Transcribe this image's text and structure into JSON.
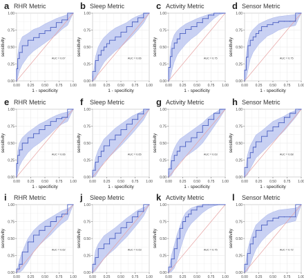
{
  "figure": {
    "xlabel": "1 - specificity",
    "ylabel": "sensitivity",
    "xticks": [
      "0.00",
      "0.25",
      "0.50",
      "0.75",
      "1.00"
    ],
    "yticks": [
      "0.00",
      "0.25",
      "0.50",
      "0.75",
      "1.00"
    ]
  },
  "colors": {
    "roc_line": "#4a5fc1",
    "ci_band": "#b7c2ef",
    "diagonal": "#e7a3a3",
    "grid": "#e6e6e6",
    "panel_border": "#9a9a9a"
  },
  "chart_data": [
    {
      "type": "line",
      "panel_letter": "a",
      "title": "RHR Metric",
      "auc_label": "AUC = 0.67",
      "xlim": [
        0,
        1
      ],
      "ylim": [
        0,
        1
      ],
      "grid": true,
      "series": [
        {
          "x": [
            0,
            0.02,
            0.05,
            0.1,
            0.2,
            0.3,
            0.4,
            0.5,
            0.6,
            0.7,
            0.8,
            0.9,
            1.0
          ],
          "y": [
            0,
            0.18,
            0.33,
            0.42,
            0.52,
            0.6,
            0.64,
            0.7,
            0.74,
            0.79,
            0.86,
            0.9,
            1.0
          ]
        }
      ],
      "ci_lower": [
        0,
        0.05,
        0.15,
        0.24,
        0.36,
        0.44,
        0.5,
        0.56,
        0.62,
        0.68,
        0.76,
        0.82,
        1.0
      ],
      "ci_upper": [
        0,
        0.38,
        0.55,
        0.65,
        0.7,
        0.76,
        0.79,
        0.84,
        0.88,
        0.92,
        0.95,
        0.98,
        1.0
      ]
    },
    {
      "type": "line",
      "panel_letter": "b",
      "title": "Sleep Metric",
      "auc_label": "AUC = 0.66",
      "xlim": [
        0,
        1
      ],
      "ylim": [
        0,
        1
      ],
      "grid": true,
      "series": [
        {
          "x": [
            0,
            0.05,
            0.1,
            0.15,
            0.2,
            0.25,
            0.3,
            0.4,
            0.5,
            0.6,
            0.7,
            0.8,
            0.9,
            1.0
          ],
          "y": [
            0,
            0.14,
            0.3,
            0.38,
            0.45,
            0.5,
            0.55,
            0.6,
            0.65,
            0.72,
            0.8,
            0.87,
            0.93,
            1.0
          ]
        }
      ],
      "ci_lower": [
        0,
        0.02,
        0.12,
        0.2,
        0.27,
        0.32,
        0.36,
        0.44,
        0.5,
        0.58,
        0.66,
        0.75,
        0.85,
        1.0
      ],
      "ci_upper": [
        0,
        0.35,
        0.5,
        0.58,
        0.64,
        0.68,
        0.72,
        0.78,
        0.82,
        0.86,
        0.92,
        0.96,
        0.99,
        1.0
      ]
    },
    {
      "type": "line",
      "panel_letter": "c",
      "title": "Activity Metric",
      "auc_label": "AUC = 0.75",
      "xlim": [
        0,
        1
      ],
      "ylim": [
        0,
        1
      ],
      "grid": true,
      "series": [
        {
          "x": [
            0,
            0.03,
            0.06,
            0.1,
            0.15,
            0.2,
            0.3,
            0.4,
            0.5,
            0.6,
            0.7,
            0.8,
            0.9,
            1.0
          ],
          "y": [
            0,
            0.2,
            0.36,
            0.48,
            0.56,
            0.62,
            0.7,
            0.76,
            0.8,
            0.86,
            0.92,
            0.97,
            1.0,
            1.0
          ]
        }
      ],
      "ci_lower": [
        0,
        0.05,
        0.16,
        0.28,
        0.38,
        0.44,
        0.54,
        0.62,
        0.68,
        0.76,
        0.84,
        0.92,
        0.98,
        1.0
      ],
      "ci_upper": [
        0,
        0.45,
        0.58,
        0.68,
        0.74,
        0.78,
        0.84,
        0.88,
        0.92,
        0.95,
        0.98,
        1.0,
        1.0,
        1.0
      ]
    },
    {
      "type": "line",
      "panel_letter": "d",
      "title": "Sensor Metric",
      "auc_label": "AUC = 0.75",
      "xlim": [
        0,
        1
      ],
      "ylim": [
        0,
        1
      ],
      "grid": true,
      "series": [
        {
          "x": [
            0,
            0.03,
            0.06,
            0.1,
            0.15,
            0.2,
            0.25,
            0.3,
            0.4,
            0.5,
            0.6,
            0.7,
            0.8,
            0.9,
            1.0
          ],
          "y": [
            0,
            0.16,
            0.35,
            0.52,
            0.6,
            0.65,
            0.7,
            0.74,
            0.8,
            0.83,
            0.86,
            0.88,
            0.88,
            0.88,
            1.0
          ]
        }
      ],
      "ci_lower": [
        0,
        0.04,
        0.16,
        0.32,
        0.42,
        0.48,
        0.54,
        0.58,
        0.66,
        0.7,
        0.75,
        0.78,
        0.8,
        0.82,
        1.0
      ],
      "ci_upper": [
        0,
        0.4,
        0.58,
        0.7,
        0.76,
        0.8,
        0.84,
        0.86,
        0.9,
        0.93,
        0.95,
        0.96,
        0.97,
        0.98,
        1.0
      ]
    },
    {
      "type": "line",
      "panel_letter": "e",
      "title": "RHR Metric",
      "auc_label": "AUC = 0.66",
      "xlim": [
        0,
        1
      ],
      "ylim": [
        0,
        1
      ],
      "grid": true,
      "series": [
        {
          "x": [
            0,
            0.02,
            0.05,
            0.1,
            0.2,
            0.3,
            0.4,
            0.5,
            0.6,
            0.7,
            0.8,
            0.9,
            1.0
          ],
          "y": [
            0,
            0.2,
            0.32,
            0.4,
            0.5,
            0.58,
            0.64,
            0.7,
            0.76,
            0.82,
            0.86,
            0.88,
            1.0
          ]
        }
      ],
      "ci_lower": [
        0,
        0.06,
        0.16,
        0.24,
        0.36,
        0.44,
        0.5,
        0.57,
        0.64,
        0.72,
        0.78,
        0.82,
        1.0
      ],
      "ci_upper": [
        0,
        0.38,
        0.5,
        0.58,
        0.66,
        0.72,
        0.78,
        0.82,
        0.87,
        0.91,
        0.94,
        0.96,
        1.0
      ]
    },
    {
      "type": "line",
      "panel_letter": "f",
      "title": "Sleep Metric",
      "auc_label": "AUC = 0.65",
      "xlim": [
        0,
        1
      ],
      "ylim": [
        0,
        1
      ],
      "grid": true,
      "series": [
        {
          "x": [
            0,
            0.05,
            0.1,
            0.15,
            0.2,
            0.3,
            0.4,
            0.5,
            0.6,
            0.7,
            0.8,
            0.9,
            1.0
          ],
          "y": [
            0,
            0.1,
            0.22,
            0.3,
            0.38,
            0.46,
            0.55,
            0.62,
            0.7,
            0.78,
            0.85,
            0.93,
            1.0
          ]
        }
      ],
      "ci_lower": [
        0,
        0.01,
        0.08,
        0.15,
        0.22,
        0.3,
        0.38,
        0.46,
        0.55,
        0.64,
        0.74,
        0.84,
        1.0
      ],
      "ci_upper": [
        0,
        0.28,
        0.4,
        0.48,
        0.56,
        0.64,
        0.72,
        0.78,
        0.84,
        0.9,
        0.94,
        0.98,
        1.0
      ]
    },
    {
      "type": "line",
      "panel_letter": "g",
      "title": "Activity Metric",
      "auc_label": "AUC = 0.63",
      "xlim": [
        0,
        1
      ],
      "ylim": [
        0,
        1
      ],
      "grid": true,
      "series": [
        {
          "x": [
            0,
            0.05,
            0.1,
            0.15,
            0.2,
            0.3,
            0.4,
            0.5,
            0.6,
            0.7,
            0.8,
            0.9,
            1.0
          ],
          "y": [
            0,
            0.12,
            0.24,
            0.32,
            0.38,
            0.45,
            0.52,
            0.58,
            0.66,
            0.76,
            0.85,
            0.94,
            1.0
          ]
        }
      ],
      "ci_lower": [
        0,
        0.02,
        0.1,
        0.16,
        0.22,
        0.3,
        0.36,
        0.42,
        0.5,
        0.62,
        0.74,
        0.86,
        1.0
      ],
      "ci_upper": [
        0,
        0.3,
        0.42,
        0.5,
        0.56,
        0.62,
        0.68,
        0.74,
        0.8,
        0.88,
        0.94,
        0.99,
        1.0
      ]
    },
    {
      "type": "line",
      "panel_letter": "h",
      "title": "Sensor Metric",
      "auc_label": "AUC = 0.68",
      "xlim": [
        0,
        1
      ],
      "ylim": [
        0,
        1
      ],
      "grid": true,
      "series": [
        {
          "x": [
            0,
            0.05,
            0.1,
            0.15,
            0.2,
            0.3,
            0.4,
            0.5,
            0.6,
            0.7,
            0.8,
            0.9,
            1.0
          ],
          "y": [
            0,
            0.14,
            0.28,
            0.36,
            0.44,
            0.52,
            0.6,
            0.68,
            0.74,
            0.8,
            0.88,
            0.94,
            1.0
          ]
        }
      ],
      "ci_lower": [
        0,
        0.03,
        0.12,
        0.2,
        0.28,
        0.36,
        0.44,
        0.52,
        0.6,
        0.68,
        0.78,
        0.88,
        1.0
      ],
      "ci_upper": [
        0,
        0.32,
        0.46,
        0.54,
        0.62,
        0.68,
        0.75,
        0.82,
        0.86,
        0.9,
        0.95,
        0.98,
        1.0
      ]
    },
    {
      "type": "line",
      "panel_letter": "i",
      "title": "RHR Metric",
      "auc_label": "AUC = 0.62",
      "xlim": [
        0,
        1
      ],
      "ylim": [
        0,
        1
      ],
      "grid": true,
      "series": [
        {
          "x": [
            0,
            0.05,
            0.1,
            0.2,
            0.3,
            0.4,
            0.5,
            0.6,
            0.7,
            0.8,
            0.9,
            1.0
          ],
          "y": [
            0,
            0.05,
            0.12,
            0.3,
            0.45,
            0.55,
            0.62,
            0.68,
            0.75,
            0.82,
            0.86,
            1.0
          ]
        }
      ],
      "ci_lower": [
        0,
        0.0,
        0.03,
        0.15,
        0.3,
        0.4,
        0.48,
        0.55,
        0.64,
        0.72,
        0.78,
        1.0
      ],
      "ci_upper": [
        0,
        0.18,
        0.3,
        0.5,
        0.62,
        0.7,
        0.76,
        0.81,
        0.86,
        0.91,
        0.94,
        1.0
      ]
    },
    {
      "type": "line",
      "panel_letter": "j",
      "title": "Sleep Metric",
      "auc_label": "AUC = 0.63",
      "xlim": [
        0,
        1
      ],
      "ylim": [
        0,
        1
      ],
      "grid": true,
      "series": [
        {
          "x": [
            0,
            0.05,
            0.1,
            0.2,
            0.3,
            0.4,
            0.5,
            0.6,
            0.7,
            0.8,
            0.9,
            1.0
          ],
          "y": [
            0,
            0.12,
            0.22,
            0.35,
            0.42,
            0.5,
            0.58,
            0.66,
            0.74,
            0.82,
            0.9,
            1.0
          ]
        }
      ],
      "ci_lower": [
        0,
        0.02,
        0.08,
        0.2,
        0.28,
        0.35,
        0.44,
        0.52,
        0.62,
        0.72,
        0.83,
        1.0
      ],
      "ci_upper": [
        0,
        0.32,
        0.42,
        0.54,
        0.6,
        0.66,
        0.73,
        0.8,
        0.86,
        0.92,
        0.96,
        1.0
      ]
    },
    {
      "type": "line",
      "panel_letter": "k",
      "title": "Activity Metric",
      "auc_label": "AUC = 0.75",
      "xlim": [
        0,
        1
      ],
      "ylim": [
        0,
        1
      ],
      "grid": true,
      "series": [
        {
          "x": [
            0,
            0.05,
            0.1,
            0.15,
            0.2,
            0.25,
            0.3,
            0.35,
            0.4,
            0.5,
            0.6,
            0.7,
            0.8,
            0.9,
            1.0
          ],
          "y": [
            0,
            0.08,
            0.2,
            0.35,
            0.5,
            0.65,
            0.75,
            0.82,
            0.86,
            0.92,
            0.97,
            1.0,
            1.0,
            1.0,
            1.0
          ]
        }
      ],
      "ci_lower": [
        0,
        0.01,
        0.06,
        0.18,
        0.32,
        0.46,
        0.58,
        0.66,
        0.72,
        0.8,
        0.88,
        0.94,
        0.98,
        1.0,
        1.0
      ],
      "ci_upper": [
        0,
        0.25,
        0.4,
        0.56,
        0.68,
        0.8,
        0.88,
        0.92,
        0.95,
        0.98,
        1.0,
        1.0,
        1.0,
        1.0,
        1.0
      ]
    },
    {
      "type": "line",
      "panel_letter": "l",
      "title": "Sensor Metric",
      "auc_label": "AUC = 0.72",
      "xlim": [
        0,
        1
      ],
      "ylim": [
        0,
        1
      ],
      "grid": true,
      "series": [
        {
          "x": [
            0,
            0.05,
            0.1,
            0.15,
            0.2,
            0.3,
            0.4,
            0.5,
            0.6,
            0.7,
            0.8,
            0.9,
            1.0
          ],
          "y": [
            0,
            0.12,
            0.28,
            0.42,
            0.52,
            0.62,
            0.7,
            0.76,
            0.8,
            0.82,
            0.82,
            0.82,
            1.0
          ]
        }
      ],
      "ci_lower": [
        0,
        0.02,
        0.12,
        0.24,
        0.34,
        0.46,
        0.55,
        0.62,
        0.68,
        0.72,
        0.74,
        0.76,
        1.0
      ],
      "ci_upper": [
        0,
        0.32,
        0.48,
        0.6,
        0.7,
        0.78,
        0.85,
        0.89,
        0.92,
        0.93,
        0.94,
        0.95,
        1.0
      ]
    }
  ]
}
